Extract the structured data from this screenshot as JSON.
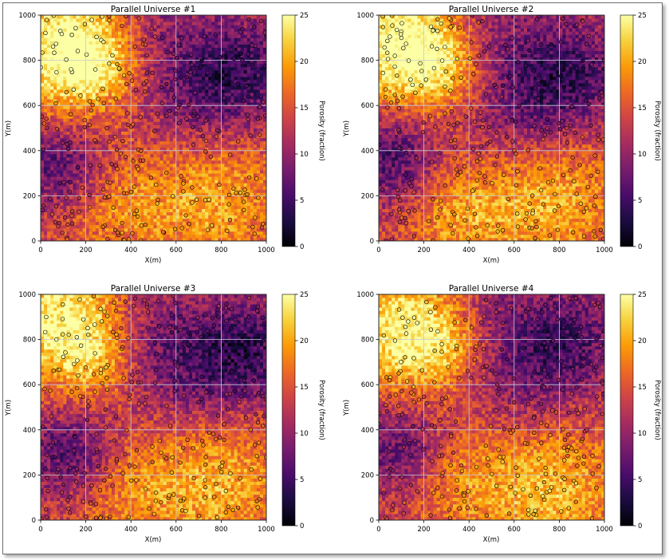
{
  "chart_data": [
    {
      "type": "heatmap",
      "title": "Parallel Universe #1",
      "xlabel": "X(m)",
      "ylabel": "Y(m)",
      "colorbar_label": "Porosity (fraction)",
      "xlim": [
        0,
        1000
      ],
      "ylim": [
        0,
        1000
      ],
      "xticks": [
        "0",
        "200",
        "400",
        "600",
        "800",
        "1000"
      ],
      "yticks": [
        "0",
        "200",
        "400",
        "600",
        "800",
        "1000"
      ],
      "clim": [
        0,
        25
      ],
      "cticks": [
        "0",
        "5",
        "10",
        "15",
        "20",
        "25"
      ],
      "colormap": "inferno",
      "grid": true,
      "overlay": "circle markers at well locations, colored by porosity",
      "seed": 11
    },
    {
      "type": "heatmap",
      "title": "Parallel Universe #2",
      "xlabel": "X(m)",
      "ylabel": "Y(m)",
      "colorbar_label": "Porosity (fraction)",
      "xlim": [
        0,
        1000
      ],
      "ylim": [
        0,
        1000
      ],
      "xticks": [
        "0",
        "200",
        "400",
        "600",
        "800",
        "1000"
      ],
      "yticks": [
        "0",
        "200",
        "400",
        "600",
        "800",
        "1000"
      ],
      "clim": [
        0,
        25
      ],
      "cticks": [
        "0",
        "5",
        "10",
        "15",
        "20",
        "25"
      ],
      "colormap": "inferno",
      "grid": true,
      "overlay": "circle markers at well locations, colored by porosity",
      "seed": 23
    },
    {
      "type": "heatmap",
      "title": "Parallel Universe #3",
      "xlabel": "X(m)",
      "ylabel": "Y(m)",
      "colorbar_label": "Porosity (fraction)",
      "xlim": [
        0,
        1000
      ],
      "ylim": [
        0,
        1000
      ],
      "xticks": [
        "0",
        "200",
        "400",
        "600",
        "800",
        "1000"
      ],
      "yticks": [
        "0",
        "200",
        "400",
        "600",
        "800",
        "1000"
      ],
      "clim": [
        0,
        25
      ],
      "cticks": [
        "0",
        "5",
        "10",
        "15",
        "20",
        "25"
      ],
      "colormap": "inferno",
      "grid": true,
      "overlay": "circle markers at well locations, colored by porosity",
      "seed": 37
    },
    {
      "type": "heatmap",
      "title": "Parallel Universe #4",
      "xlabel": "X(m)",
      "ylabel": "Y(m)",
      "colorbar_label": "Porosity (fraction)",
      "xlim": [
        0,
        1000
      ],
      "ylim": [
        0,
        1000
      ],
      "xticks": [
        "0",
        "200",
        "400",
        "600",
        "800",
        "1000"
      ],
      "yticks": [
        "0",
        "200",
        "400",
        "600",
        "800",
        "1000"
      ],
      "clim": [
        0,
        25
      ],
      "cticks": [
        "0",
        "5",
        "10",
        "15",
        "20",
        "25"
      ],
      "colormap": "inferno",
      "grid": true,
      "overlay": "circle markers at well locations, colored by porosity",
      "seed": 53
    }
  ],
  "colors": {
    "colormap_stops": [
      "#000004",
      "#1b0c41",
      "#4a0c6b",
      "#781c6d",
      "#a52c60",
      "#cf4446",
      "#ed6925",
      "#fb9b06",
      "#f7d13d",
      "#fcffa4"
    ],
    "grid": "#c8c8d8",
    "frame_border": "#6e6e6e"
  }
}
